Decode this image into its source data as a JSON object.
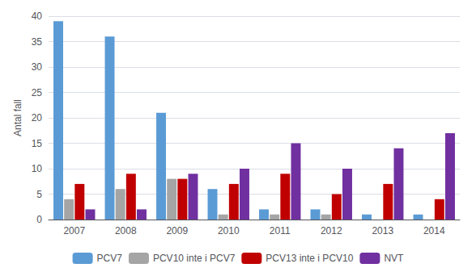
{
  "chart_data": {
    "type": "bar",
    "categories": [
      "2007",
      "2008",
      "2009",
      "2010",
      "2011",
      "2012",
      "2013",
      "2014"
    ],
    "series": [
      {
        "name": "PCV7",
        "color": "#5B9BD5",
        "values": [
          39,
          36,
          21,
          6,
          2,
          2,
          1,
          1
        ]
      },
      {
        "name": "PCV10 inte i PCV7",
        "color": "#A5A5A5",
        "values": [
          4,
          6,
          8,
          1,
          1,
          1,
          0,
          0
        ]
      },
      {
        "name": "PCV13 inte i PCV10",
        "color": "#C00000",
        "values": [
          7,
          9,
          8,
          7,
          9,
          5,
          7,
          4
        ]
      },
      {
        "name": "NVT",
        "color": "#7030A0",
        "values": [
          2,
          2,
          9,
          10,
          15,
          10,
          14,
          17
        ]
      }
    ],
    "ylabel": "Antal fall",
    "ylim": [
      0,
      40
    ],
    "yticks": [
      0,
      5,
      10,
      15,
      20,
      25,
      30,
      35,
      40
    ],
    "grid": true,
    "legend": "bottom"
  }
}
